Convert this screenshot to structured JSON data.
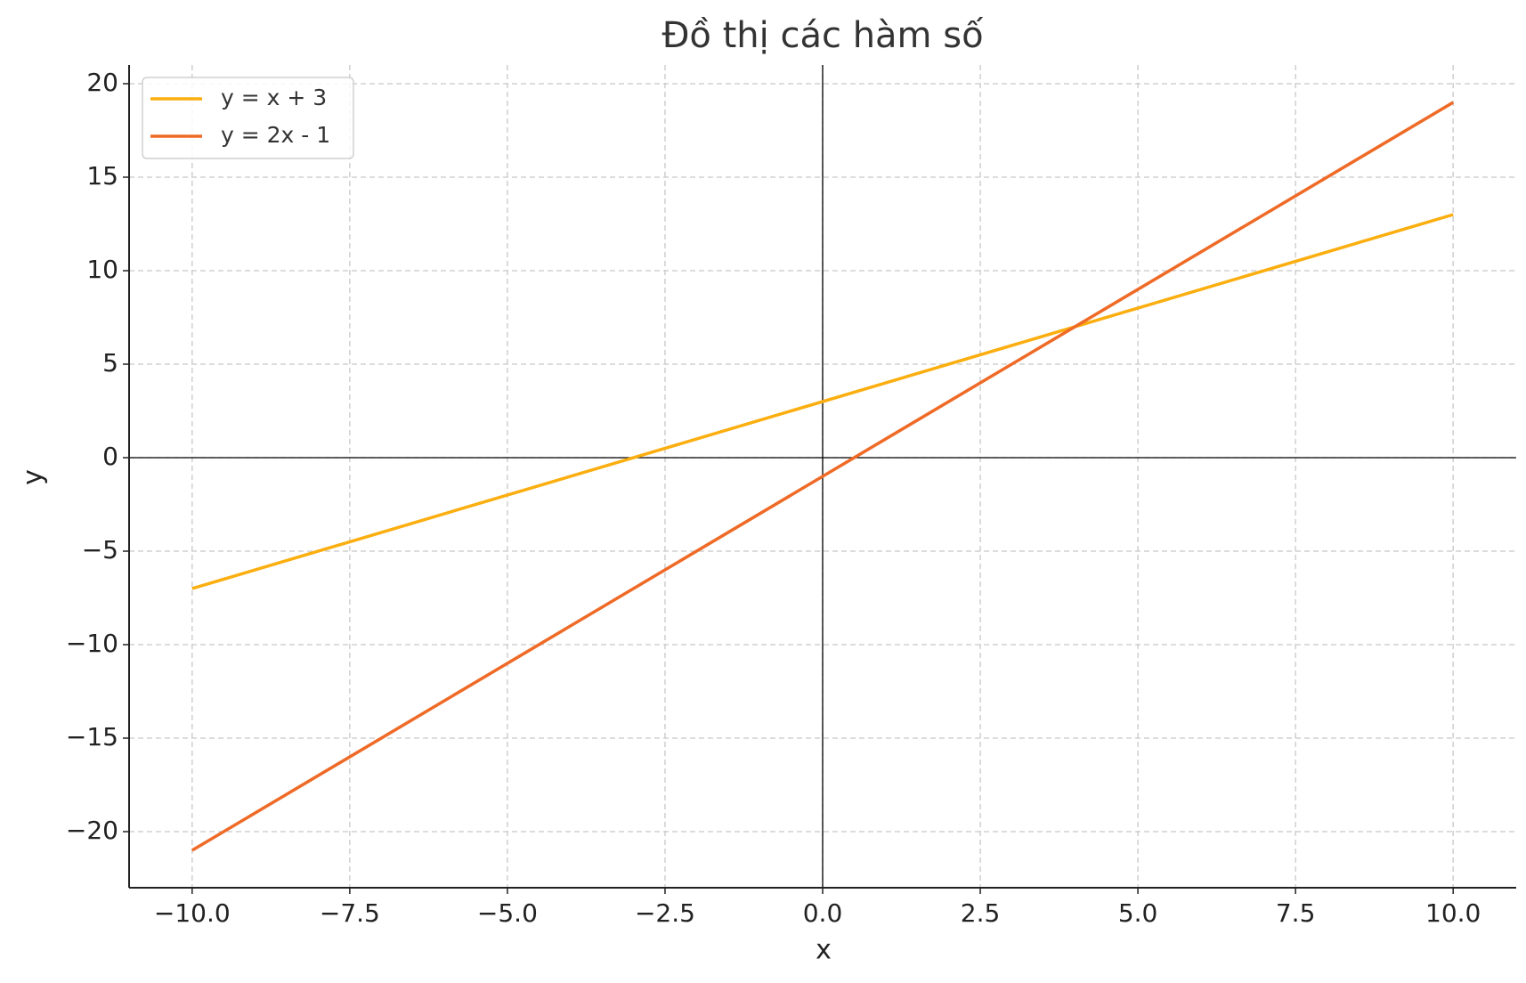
{
  "chart_data": {
    "type": "line",
    "title": "Đồ thị các hàm số",
    "x_label": "x",
    "y_label": "y",
    "x": [
      -10,
      10
    ],
    "series": [
      {
        "name": "y = x + 3",
        "color": "#fbae0f",
        "values": [
          -7,
          13
        ]
      },
      {
        "name": "y = 2x - 1",
        "color": "#ef6a26",
        "values": [
          -21,
          19
        ]
      }
    ],
    "xlim": [
      -11,
      11
    ],
    "ylim": [
      -23,
      21
    ],
    "xticks": [
      {
        "value": -10,
        "label": "−10.0"
      },
      {
        "value": -7.5,
        "label": "−7.5"
      },
      {
        "value": -5,
        "label": "−5.0"
      },
      {
        "value": -2.5,
        "label": "−2.5"
      },
      {
        "value": 0,
        "label": "0.0"
      },
      2.5,
      {
        "value": 5,
        "label": "5.0"
      },
      7.5,
      {
        "value": 10,
        "label": "10.0"
      }
    ],
    "yticks": [
      {
        "value": -20,
        "label": "−20"
      },
      {
        "value": -15,
        "label": "−15"
      },
      {
        "value": -10,
        "label": "−10"
      },
      {
        "value": -5,
        "label": "−5"
      },
      0,
      5,
      10,
      15,
      20
    ],
    "grid": true,
    "zero_lines": true,
    "legend": "upper left"
  }
}
